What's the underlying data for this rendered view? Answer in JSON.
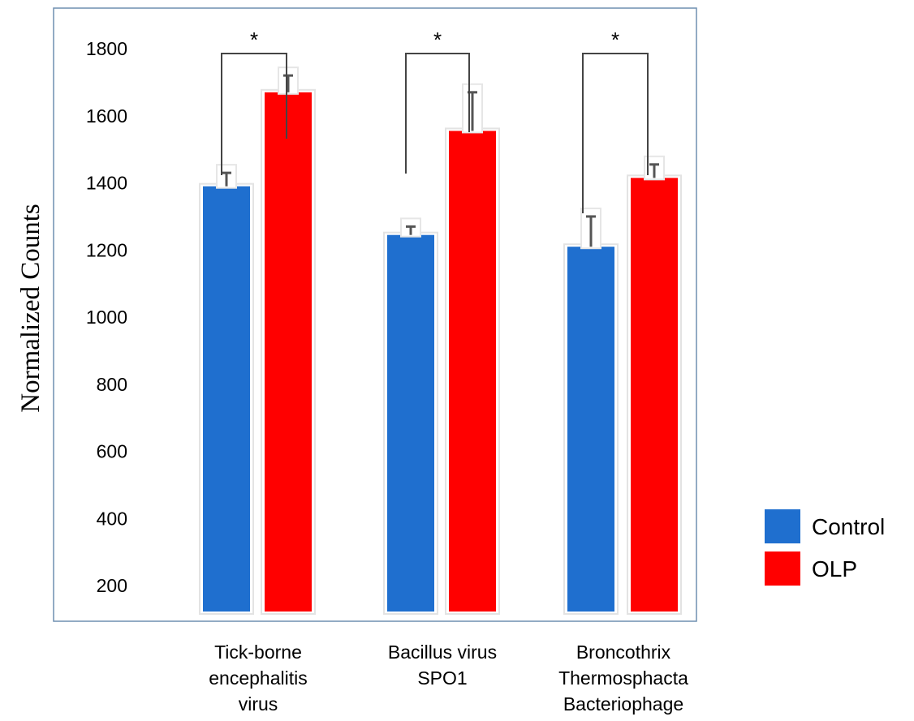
{
  "colors": {
    "control": "#1f6fcf",
    "olp": "#ff0000",
    "frame": "#6f8fb0",
    "error_bar": "#555555",
    "bracket": "#444444"
  },
  "chart_data": {
    "type": "bar",
    "title": "",
    "xlabel": "",
    "ylabel": "Normalized Counts",
    "ylim": [
      0,
      1800
    ],
    "y_ticks": [
      200,
      400,
      600,
      800,
      1000,
      1200,
      1400,
      1600,
      1800
    ],
    "grid": false,
    "legend_position": "right",
    "categories": [
      [
        "Tick-borne",
        "encephalitis",
        "virus"
      ],
      [
        "Bacillus virus",
        "SPO1"
      ],
      [
        "Broncothrix",
        "Thermosphacta",
        "Bacteriophage"
      ]
    ],
    "series": [
      {
        "name": "Control",
        "values": [
          1390,
          1245,
          1210
        ],
        "errors": [
          40,
          25,
          90
        ]
      },
      {
        "name": "OLP",
        "values": [
          1670,
          1555,
          1415
        ],
        "errors": [
          50,
          115,
          40
        ]
      }
    ],
    "significance": [
      {
        "category_index": 0,
        "label": "*"
      },
      {
        "category_index": 1,
        "label": "*"
      },
      {
        "category_index": 2,
        "label": "*"
      }
    ]
  }
}
